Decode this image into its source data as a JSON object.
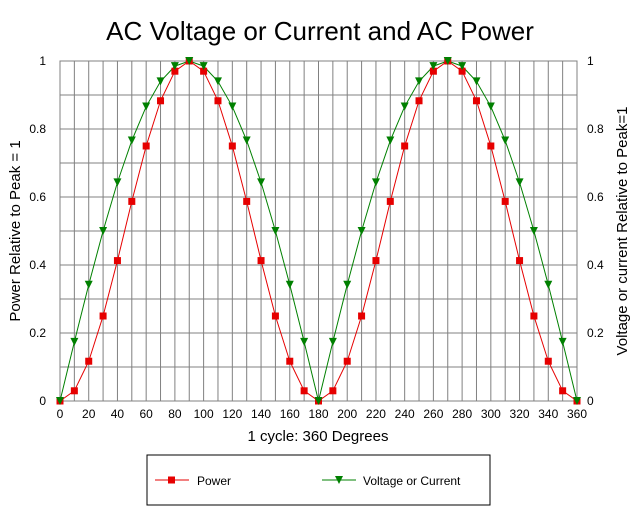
{
  "chart_data": {
    "type": "line",
    "title": "AC Voltage or Current and AC Power",
    "xlabel": "1 cycle:  360 Degrees",
    "ylabel_left": "Power Relative to Peak = 1",
    "ylabel_right": "Voltage or current Relative to Peak=1",
    "xlim": [
      0,
      360
    ],
    "ylim": [
      0,
      1
    ],
    "grid": true,
    "legend_placement": "bottom-center",
    "x_ticks": [
      "0",
      "20",
      "40",
      "60",
      "80",
      "100",
      "120",
      "140",
      "160",
      "180",
      "200",
      "220",
      "240",
      "260",
      "280",
      "300",
      "320",
      "340",
      "360"
    ],
    "y_ticks_left": [
      "0",
      "0.2",
      "0.4",
      "0.6",
      "0.8",
      "1"
    ],
    "y_ticks_right": [
      "0",
      "0.2",
      "0.4",
      "0.6",
      "0.8",
      "1"
    ],
    "x": [
      0,
      10,
      20,
      30,
      40,
      50,
      60,
      70,
      80,
      90,
      100,
      110,
      120,
      130,
      140,
      150,
      160,
      170,
      180,
      190,
      200,
      210,
      220,
      230,
      240,
      250,
      260,
      270,
      280,
      290,
      300,
      310,
      320,
      330,
      340,
      350,
      360
    ],
    "series": [
      {
        "name": "Power",
        "color": "#e60000",
        "marker": "square",
        "values": [
          0,
          0.03,
          0.117,
          0.25,
          0.413,
          0.587,
          0.75,
          0.883,
          0.97,
          1,
          0.97,
          0.883,
          0.75,
          0.587,
          0.413,
          0.25,
          0.117,
          0.03,
          0,
          0.03,
          0.117,
          0.25,
          0.413,
          0.587,
          0.75,
          0.883,
          0.97,
          1,
          0.97,
          0.883,
          0.75,
          0.587,
          0.413,
          0.25,
          0.117,
          0.03,
          0
        ]
      },
      {
        "name": "Voltage or Current",
        "color": "#008000",
        "marker": "triangle-down",
        "values": [
          0,
          0.174,
          0.342,
          0.5,
          0.643,
          0.766,
          0.866,
          0.94,
          0.985,
          1,
          0.985,
          0.94,
          0.866,
          0.766,
          0.643,
          0.5,
          0.342,
          0.174,
          0,
          0.174,
          0.342,
          0.5,
          0.643,
          0.766,
          0.866,
          0.94,
          0.985,
          1,
          0.985,
          0.94,
          0.866,
          0.766,
          0.643,
          0.5,
          0.342,
          0.174,
          0
        ]
      }
    ]
  }
}
